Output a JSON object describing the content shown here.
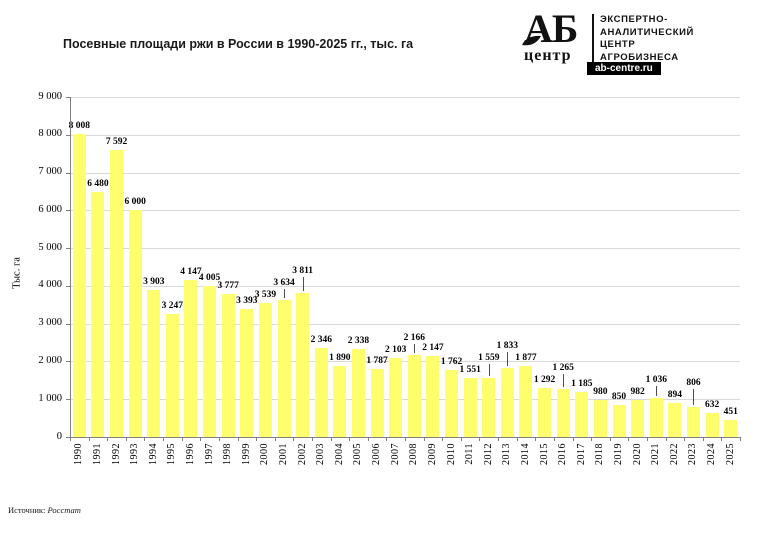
{
  "header": {
    "title": "Посевные площади ржи в России в 1990-2025 гг., тыс. га"
  },
  "logo": {
    "abbr": "АБ",
    "sub": "центр",
    "lines": [
      "ЭКСПЕРТНО-",
      "АНАЛИТИЧЕСКИЙ",
      "ЦЕНТР",
      "АГРОБИЗНЕСА"
    ],
    "site": "ab-centre.ru"
  },
  "footer": {
    "source_label": "Источник:",
    "source_name": "Росстат"
  },
  "chart_data": {
    "type": "bar",
    "title": "Посевные площади ржи в России в 1990-2025 гг., тыс. га",
    "xlabel": "",
    "ylabel": "Тыс. га",
    "categories": [
      "1990",
      "1991",
      "1992",
      "1993",
      "1994",
      "1995",
      "1996",
      "1997",
      "1998",
      "1999",
      "2000",
      "2001",
      "2002",
      "2003",
      "2004",
      "2005",
      "2006",
      "2007",
      "2008",
      "2009",
      "2010",
      "2011",
      "2012",
      "2013",
      "2014",
      "2015",
      "2016",
      "2017",
      "2018",
      "2019",
      "2020",
      "2021",
      "2022",
      "2023",
      "2024",
      "2025"
    ],
    "values": [
      8008,
      6480,
      7592,
      6000,
      3903,
      3247,
      4147,
      4005,
      3777,
      3393,
      3539,
      3634,
      3811,
      2346,
      1890,
      2338,
      1787,
      2103,
      2166,
      2147,
      1762,
      1551,
      1559,
      1833,
      1877,
      1292,
      1265,
      1185,
      980,
      850,
      982,
      1036,
      894,
      806,
      632,
      451
    ],
    "ylim": [
      0,
      9000
    ],
    "ytick_step": 1000,
    "grid": true,
    "legend_position": "none",
    "bar_color": "#ffff6e",
    "gridline_color": "#d9d9d9",
    "axis_color": "#808080",
    "data_label_color": "#000000",
    "number_format": "space-thousands"
  }
}
